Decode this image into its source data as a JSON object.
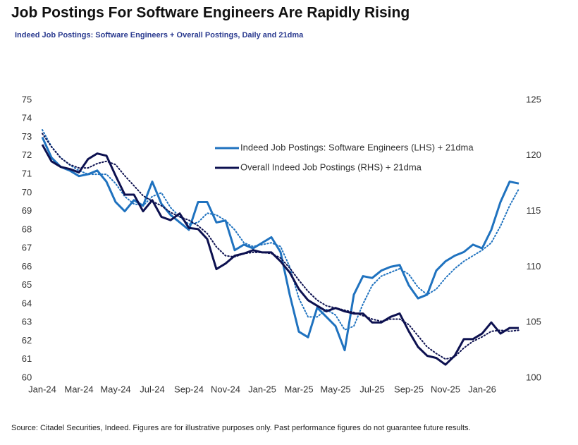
{
  "chart_data": {
    "type": "line",
    "title": "Job Postings For Software Engineers Are Rapidly Rising",
    "subtitle": "Indeed Job Postings: Software Engineers + Overall Postings, Daily and 21dma",
    "source": "Source: Citadel Securities, Indeed. Figures are for illustrative purposes only. Past performance figures do not guarantee future results.",
    "categories": [
      "Jan-24",
      null,
      null,
      null,
      "Mar-24",
      null,
      null,
      null,
      "May-24",
      null,
      null,
      null,
      "Jul-24",
      null,
      null,
      null,
      "Sep-24",
      null,
      null,
      null,
      "Nov-24",
      null,
      null,
      null,
      "Jan-25",
      null,
      null,
      null,
      "Mar-25",
      null,
      null,
      null,
      "May-25",
      null,
      null,
      null,
      "Jul-25",
      null,
      null,
      null,
      "Sep-25",
      null,
      null,
      null,
      "Nov-25",
      null,
      null,
      null,
      "Jan-26",
      null,
      null,
      null,
      null
    ],
    "ylim": [
      60,
      75
    ],
    "yticks": [
      60,
      61,
      62,
      63,
      64,
      65,
      66,
      67,
      68,
      69,
      70,
      71,
      72,
      73,
      74,
      75
    ],
    "y2lim": [
      100,
      125
    ],
    "y2ticks": [
      100,
      105,
      110,
      115,
      120,
      125
    ],
    "legend": "upper-center",
    "series": [
      {
        "name": "Indeed Job Postings: Software Engineers (LHS) + 21dma",
        "color": "#1f72bf",
        "line_style": "solid",
        "values": [
          73,
          71.9,
          71.4,
          71.2,
          70.9,
          71.0,
          71.2,
          70.6,
          69.5,
          69.0,
          69.6,
          69.3,
          70.6,
          69.4,
          68.8,
          68.4,
          68.0,
          69.5,
          69.5,
          68.4,
          68.5,
          66.9,
          67.2,
          67.0,
          67.3,
          67.6,
          66.8,
          64.5,
          62.5,
          62.2,
          63.8,
          63.3,
          62.8,
          61.5,
          64.5,
          65.5,
          65.4,
          65.8,
          66.0,
          66.1,
          65.0,
          64.3,
          64.5,
          65.8,
          66.3,
          66.6,
          66.8,
          67.2,
          67.0,
          68.0,
          69.5,
          70.6,
          70.5
        ]
      },
      {
        "color": "#1f72bf",
        "line_style": "dotted",
        "values": [
          73.4,
          72.5,
          71.9,
          71.5,
          71.2,
          71.0,
          71.0,
          71.0,
          70.5,
          69.8,
          69.4,
          69.3,
          69.8,
          70.0,
          69.2,
          68.7,
          68.3,
          68.4,
          68.9,
          68.8,
          68.5,
          68.0,
          67.3,
          67.1,
          67.2,
          67.3,
          67.1,
          66.0,
          64.3,
          63.3,
          63.3,
          63.7,
          63.4,
          62.6,
          62.8,
          64.0,
          65.0,
          65.5,
          65.7,
          65.9,
          65.6,
          64.9,
          64.5,
          64.8,
          65.4,
          65.9,
          66.3,
          66.6,
          66.9,
          67.3,
          68.2,
          69.3,
          70.2
        ]
      },
      {
        "name": "Overall Indeed Job Postings (RHS) + 21dma",
        "color": "#0d1150",
        "line_style": "solid",
        "axis": "y2",
        "values": [
          121,
          119.5,
          119.0,
          118.8,
          118.5,
          119.7,
          120.2,
          120.0,
          118.2,
          116.5,
          116.5,
          115.0,
          116.0,
          114.5,
          114.2,
          114.8,
          113.5,
          113.4,
          112.5,
          109.8,
          110.3,
          111.0,
          111.2,
          111.5,
          111.3,
          111.3,
          110.5,
          109.5,
          108.0,
          107.0,
          106.5,
          106.0,
          106.3,
          106.0,
          105.8,
          105.8,
          105.0,
          105.0,
          105.5,
          105.8,
          104.2,
          102.8,
          102.0,
          101.8,
          101.2,
          102.0,
          103.5,
          103.5,
          104.0,
          105.0,
          104.0,
          104.5,
          104.5
        ]
      },
      {
        "color": "#0d1150",
        "line_style": "dotted",
        "axis": "y2",
        "values": [
          122,
          120.8,
          119.8,
          119.2,
          118.9,
          118.9,
          119.3,
          119.5,
          119.2,
          118.2,
          117.3,
          116.4,
          115.9,
          115.5,
          114.9,
          114.5,
          114.2,
          113.7,
          113.0,
          111.8,
          111.0,
          110.9,
          111.2,
          111.3,
          111.3,
          111.2,
          110.8,
          109.9,
          108.8,
          107.8,
          107.0,
          106.5,
          106.3,
          106.1,
          105.9,
          105.6,
          105.3,
          105.1,
          105.3,
          105.3,
          104.8,
          103.8,
          102.8,
          102.2,
          101.7,
          101.9,
          102.7,
          103.3,
          103.7,
          104.2,
          104.3,
          104.2,
          104.3
        ]
      }
    ]
  }
}
